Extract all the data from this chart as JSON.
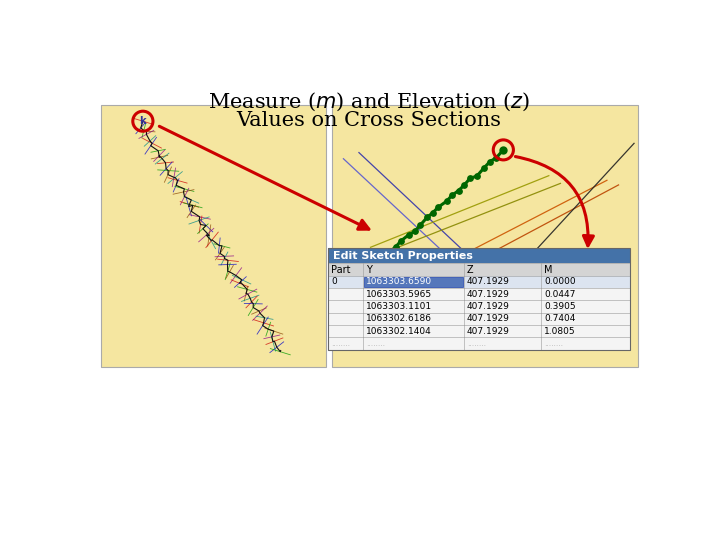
{
  "bg_color": "#ffffff",
  "panel_bg": "#f5e6a0",
  "table_header_bg": "#4472a8",
  "table_header_text": "#ffffff",
  "table_row1_bg": "#c8d4e8",
  "table_row_bg": "#f0f0f0",
  "table_headers": [
    "Part",
    "Y",
    "Z",
    "M"
  ],
  "table_rows": [
    [
      "0",
      "1063303.6590",
      "407.1929",
      "0.0000"
    ],
    [
      "",
      "1063303.5965",
      "407.1929",
      "0.0447"
    ],
    [
      "",
      "1063303.1101",
      "407.1929",
      "0.3905"
    ],
    [
      "",
      "1063302.6186",
      "407.1929",
      "0.7404"
    ],
    [
      "",
      "1063302.1404",
      "407.1929",
      "1.0805"
    ]
  ],
  "table_title": "Edit Sketch Properties",
  "red_color": "#cc0000",
  "title_line1": "Measure (",
  "title_italic1": "m",
  "title_mid": ") and Elevation (",
  "title_italic2": "z",
  "title_end": ")",
  "title_line2": "Values on Cross Sections"
}
